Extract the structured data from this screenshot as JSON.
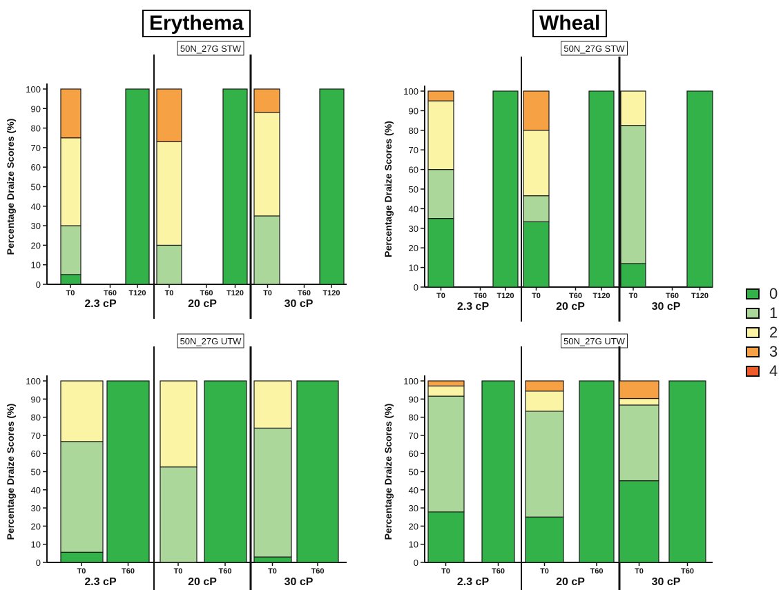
{
  "headings": {
    "erythema": "Erythema",
    "wheal": "Wheal"
  },
  "colors": {
    "0": "#33b249",
    "1": "#acd79a",
    "2": "#fbf4a4",
    "3": "#f7a145",
    "4": "#ee5c2c"
  },
  "legend": [
    {
      "label": "0",
      "color_key": "0"
    },
    {
      "label": "1",
      "color_key": "1"
    },
    {
      "label": "2",
      "color_key": "2"
    },
    {
      "label": "3",
      "color_key": "3"
    },
    {
      "label": "4",
      "color_key": "4"
    }
  ],
  "chart_data": [
    {
      "type": "bar",
      "stacked": true,
      "title": "50N_27G STW",
      "ylabel": "Percentage Draize Scores (%)",
      "ylim": [
        0,
        100
      ],
      "yticks": [
        0,
        10,
        20,
        30,
        40,
        50,
        60,
        70,
        80,
        90,
        100
      ],
      "groups": [
        "2.3 cP",
        "20 cP",
        "30 cP"
      ],
      "timepoints": [
        "T0",
        "T60",
        "T120"
      ],
      "bars": [
        {
          "group": "2.3 cP",
          "time": "T0",
          "segments": [
            5,
            25,
            45,
            25,
            0
          ]
        },
        {
          "group": "2.3 cP",
          "time": "T60",
          "segments": []
        },
        {
          "group": "2.3 cP",
          "time": "T120",
          "segments": [
            100,
            0,
            0,
            0,
            0
          ]
        },
        {
          "group": "20 cP",
          "time": "T0",
          "segments": [
            0,
            20,
            53,
            27,
            0
          ]
        },
        {
          "group": "20 cP",
          "time": "T60",
          "segments": []
        },
        {
          "group": "20 cP",
          "time": "T120",
          "segments": [
            100,
            0,
            0,
            0,
            0
          ]
        },
        {
          "group": "30 cP",
          "time": "T0",
          "segments": [
            0,
            35,
            53,
            12,
            0
          ]
        },
        {
          "group": "30 cP",
          "time": "T60",
          "segments": []
        },
        {
          "group": "30 cP",
          "time": "T120",
          "segments": [
            100,
            0,
            0,
            0,
            0
          ]
        }
      ]
    },
    {
      "type": "bar",
      "stacked": true,
      "title": "50N_27G STW",
      "ylabel": "Percentage Draize Scores (%)",
      "ylim": [
        0,
        100
      ],
      "yticks": [
        0,
        10,
        20,
        30,
        40,
        50,
        60,
        70,
        80,
        90,
        100
      ],
      "groups": [
        "2.3 cP",
        "20 cP",
        "30 cP"
      ],
      "timepoints": [
        "T0",
        "T60",
        "T120"
      ],
      "bars": [
        {
          "group": "2.3 cP",
          "time": "T0",
          "segments": [
            35,
            25,
            35,
            5,
            0
          ]
        },
        {
          "group": "2.3 cP",
          "time": "T60",
          "segments": []
        },
        {
          "group": "2.3 cP",
          "time": "T120",
          "segments": [
            100,
            0,
            0,
            0,
            0
          ]
        },
        {
          "group": "20 cP",
          "time": "T0",
          "segments": [
            33.3,
            13.3,
            33.4,
            20,
            0
          ]
        },
        {
          "group": "20 cP",
          "time": "T60",
          "segments": []
        },
        {
          "group": "20 cP",
          "time": "T120",
          "segments": [
            100,
            0,
            0,
            0,
            0
          ]
        },
        {
          "group": "30 cP",
          "time": "T0",
          "segments": [
            12,
            70.5,
            17.5,
            0,
            0
          ]
        },
        {
          "group": "30 cP",
          "time": "T60",
          "segments": []
        },
        {
          "group": "30 cP",
          "time": "T120",
          "segments": [
            100,
            0,
            0,
            0,
            0
          ]
        }
      ]
    },
    {
      "type": "bar",
      "stacked": true,
      "title": "50N_27G UTW",
      "ylabel": "Percentage Draize Scores (%)",
      "ylim": [
        0,
        100
      ],
      "yticks": [
        0,
        10,
        20,
        30,
        40,
        50,
        60,
        70,
        80,
        90,
        100
      ],
      "groups": [
        "2.3 cP",
        "20 cP",
        "30 cP"
      ],
      "timepoints": [
        "T0",
        "T60"
      ],
      "bars": [
        {
          "group": "2.3 cP",
          "time": "T0",
          "segments": [
            5.6,
            61,
            33.4,
            0,
            0
          ]
        },
        {
          "group": "2.3 cP",
          "time": "T60",
          "segments": [
            100,
            0,
            0,
            0,
            0
          ]
        },
        {
          "group": "20 cP",
          "time": "T0",
          "segments": [
            0,
            52.6,
            47.4,
            0,
            0
          ]
        },
        {
          "group": "20 cP",
          "time": "T60",
          "segments": [
            100,
            0,
            0,
            0,
            0
          ]
        },
        {
          "group": "30 cP",
          "time": "T0",
          "segments": [
            3,
            71,
            26,
            0,
            0
          ]
        },
        {
          "group": "30 cP",
          "time": "T60",
          "segments": [
            100,
            0,
            0,
            0,
            0
          ]
        }
      ]
    },
    {
      "type": "bar",
      "stacked": true,
      "title": "50N_27G UTW",
      "ylabel": "Percentage Draize Scores (%)",
      "ylim": [
        0,
        100
      ],
      "yticks": [
        0,
        10,
        20,
        30,
        40,
        50,
        60,
        70,
        80,
        90,
        100
      ],
      "groups": [
        "2.3 cP",
        "20 cP",
        "30 cP"
      ],
      "timepoints": [
        "T0",
        "T60"
      ],
      "bars": [
        {
          "group": "2.3 cP",
          "time": "T0",
          "segments": [
            27.8,
            63.8,
            5.6,
            2.8,
            0
          ]
        },
        {
          "group": "2.3 cP",
          "time": "T60",
          "segments": [
            100,
            0,
            0,
            0,
            0
          ]
        },
        {
          "group": "20 cP",
          "time": "T0",
          "segments": [
            25,
            58.3,
            11.1,
            5.6,
            0
          ]
        },
        {
          "group": "20 cP",
          "time": "T60",
          "segments": [
            100,
            0,
            0,
            0,
            0
          ]
        },
        {
          "group": "30 cP",
          "time": "T0",
          "segments": [
            45,
            41.7,
            3.6,
            9.7,
            0
          ]
        },
        {
          "group": "30 cP",
          "time": "T60",
          "segments": [
            100,
            0,
            0,
            0,
            0
          ]
        }
      ]
    }
  ]
}
